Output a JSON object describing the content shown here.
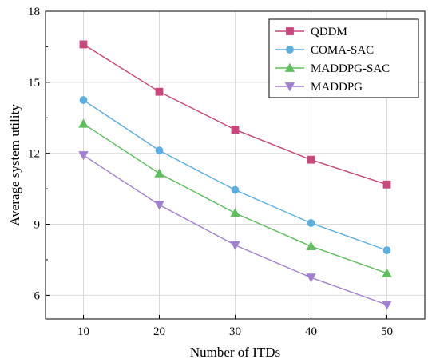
{
  "chart_data": {
    "type": "line",
    "xlabel": "Number of ITDs",
    "ylabel": "Average system utility",
    "x": [
      10,
      20,
      30,
      40,
      50
    ],
    "xticks": [
      "10",
      "20",
      "30",
      "40",
      "50"
    ],
    "xlim": [
      5,
      55
    ],
    "ylim": [
      5,
      18
    ],
    "yticks": [
      "6",
      "9",
      "12",
      "15",
      "18"
    ],
    "ytick_values": [
      6,
      9,
      12,
      15,
      18
    ],
    "grid": true,
    "legend_position": "top-right",
    "series": [
      {
        "name": "QDDM",
        "color": "#c8467a",
        "marker": "square",
        "values": [
          16.6,
          14.6,
          13.0,
          11.73,
          10.68
        ]
      },
      {
        "name": "COMA-SAC",
        "color": "#5aaee0",
        "marker": "circle",
        "values": [
          14.25,
          12.12,
          10.45,
          9.05,
          7.9
        ]
      },
      {
        "name": "MADDPG-SAC",
        "color": "#5cbf5c",
        "marker": "triangle-up",
        "values": [
          13.25,
          11.15,
          9.47,
          8.07,
          6.93
        ]
      },
      {
        "name": "MADDPG",
        "color": "#a07fd0",
        "marker": "triangle-down",
        "values": [
          11.92,
          9.82,
          8.12,
          6.75,
          5.6
        ]
      }
    ]
  }
}
